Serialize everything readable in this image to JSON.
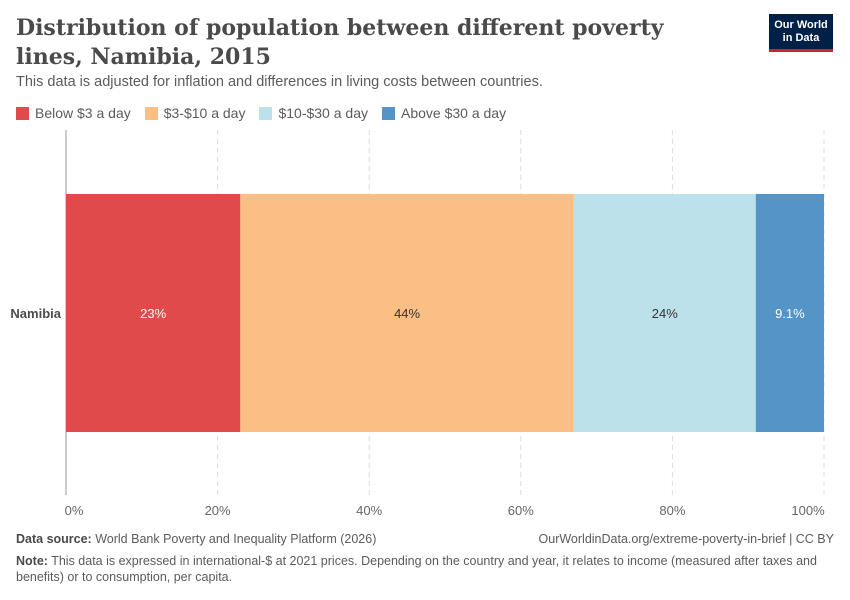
{
  "header": {
    "title": "Distribution of population between different poverty lines, Namibia, 2015",
    "subtitle": "This data is adjusted for inflation and differences in living costs between countries.",
    "logo_line1": "Our World",
    "logo_line2": "in Data"
  },
  "colors": {
    "below3": "#e04a4a",
    "3to10": "#fbbf86",
    "10to30": "#bde1eb",
    "above30": "#5594c6"
  },
  "chart_data": {
    "type": "bar",
    "orientation": "horizontal",
    "stacked": true,
    "categories": [
      "Namibia"
    ],
    "series": [
      {
        "name": "Below $3 a day",
        "values": [
          23
        ],
        "label": "23%",
        "color": "#e04a4a",
        "label_color": "#ffffff"
      },
      {
        "name": "$3-$10 a day",
        "values": [
          44
        ],
        "label": "44%",
        "color": "#fbbf86",
        "label_color": "#333333"
      },
      {
        "name": "$10-$30 a day",
        "values": [
          24
        ],
        "label": "24%",
        "color": "#bde1eb",
        "label_color": "#333333"
      },
      {
        "name": "Above $30 a day",
        "values": [
          9.1
        ],
        "label": "9.1%",
        "color": "#5594c6",
        "label_color": "#ffffff"
      }
    ],
    "xlim": [
      0,
      100
    ],
    "x_ticks": [
      0,
      20,
      40,
      60,
      80,
      100
    ],
    "x_tick_labels": [
      "0%",
      "20%",
      "40%",
      "60%",
      "80%",
      "100%"
    ],
    "grid": true,
    "legend_position": "top-left"
  },
  "footer": {
    "source_label": "Data source:",
    "source_text": "World Bank Poverty and Inequality Platform (2026)",
    "url_text": "OurWorldinData.org/extreme-poverty-in-brief | CC BY",
    "note_label": "Note:",
    "note_text": "This data is expressed in international-$ at 2021 prices. Depending on the country and year, it relates to income (measured after taxes and benefits) or to consumption, per capita."
  }
}
